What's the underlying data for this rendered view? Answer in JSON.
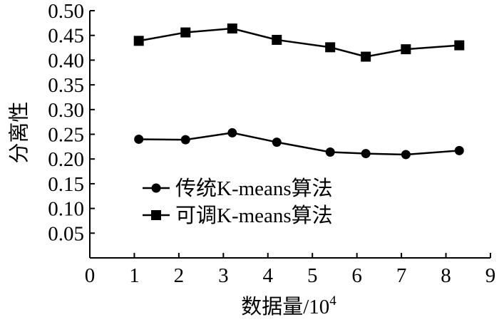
{
  "chart_data": {
    "type": "line",
    "title": "",
    "xlabel": "数据量/10",
    "xlabel_superscript": "4",
    "ylabel": "分离性",
    "xlim": [
      0,
      9
    ],
    "ylim": [
      0,
      0.5
    ],
    "x_ticks": [
      "0",
      "1",
      "2",
      "3",
      "4",
      "5",
      "6",
      "7",
      "8",
      "9"
    ],
    "y_ticks": [
      "0.05",
      "0.10",
      "0.15",
      "0.20",
      "0.25",
      "0.30",
      "0.35",
      "0.40",
      "0.45",
      "0.50"
    ],
    "grid": false,
    "legend_position": "center-left",
    "series": [
      {
        "name": "传统K-means算法",
        "marker": "circle",
        "color": "#000000",
        "x": [
          1.1,
          2.15,
          3.2,
          4.2,
          5.4,
          6.2,
          7.1,
          8.3
        ],
        "values": [
          0.24,
          0.239,
          0.253,
          0.234,
          0.214,
          0.211,
          0.209,
          0.217
        ]
      },
      {
        "name": "可调K-means算法",
        "marker": "square",
        "color": "#000000",
        "x": [
          1.1,
          2.15,
          3.2,
          4.2,
          5.4,
          6.2,
          7.1,
          8.3
        ],
        "values": [
          0.439,
          0.456,
          0.464,
          0.441,
          0.426,
          0.407,
          0.422,
          0.43
        ]
      }
    ]
  }
}
